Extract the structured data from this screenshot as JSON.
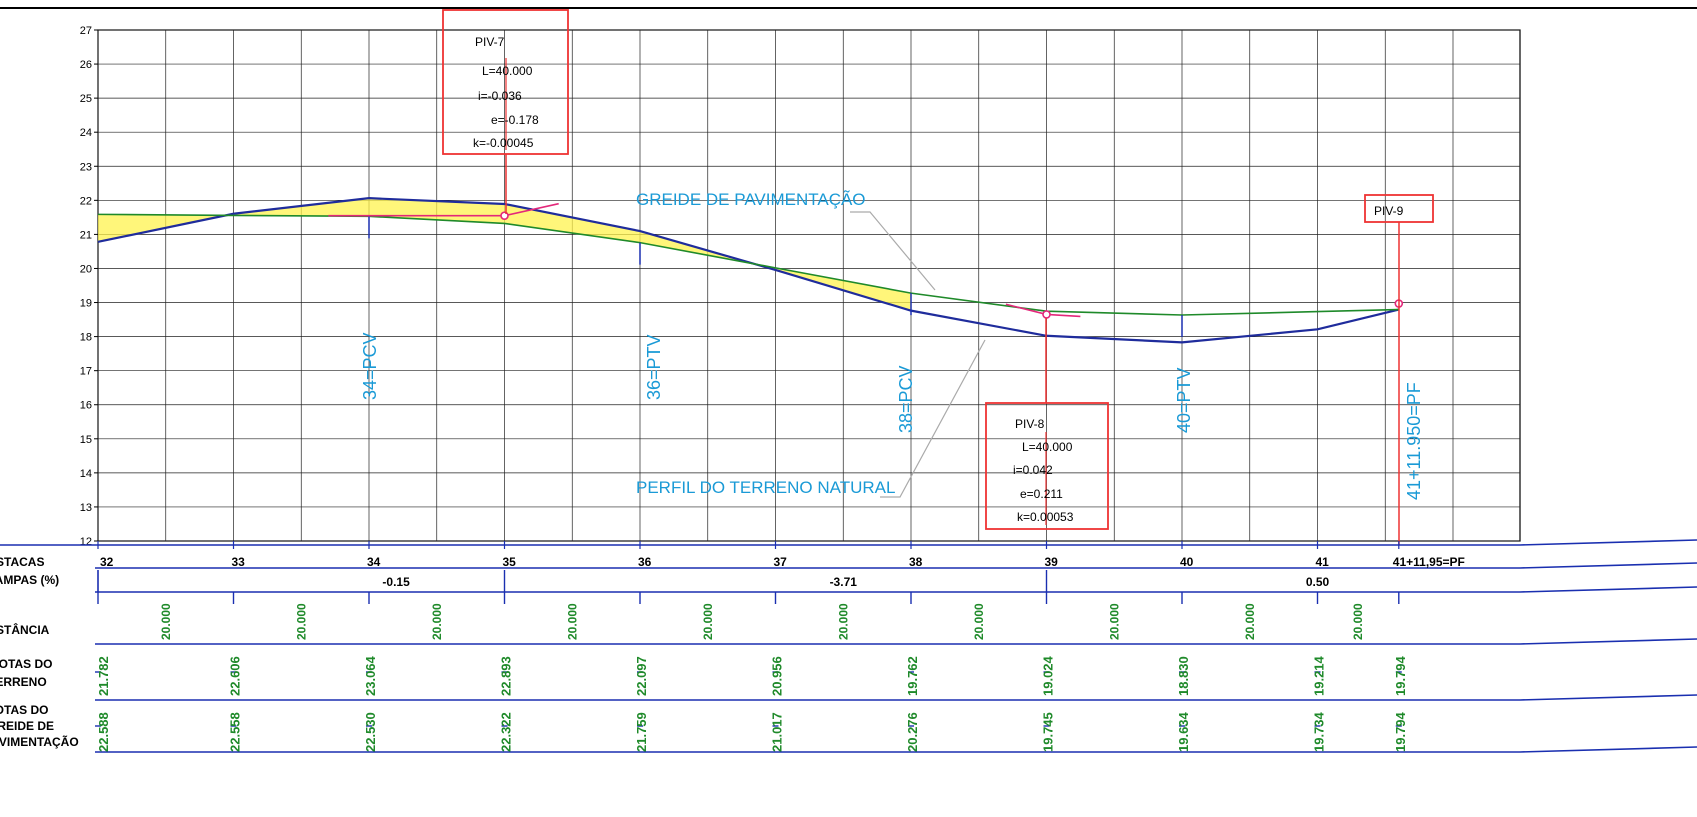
{
  "chart_data": {
    "type": "line",
    "x": [
      32,
      33,
      34,
      35,
      36,
      37,
      38,
      39,
      40,
      41,
      41.6
    ],
    "xlim": [
      32,
      42.7
    ],
    "ylim": [
      12,
      27
    ],
    "y_ticks": [
      "12",
      "13",
      "14",
      "15",
      "16",
      "17",
      "18",
      "19",
      "20",
      "21",
      "22",
      "23",
      "24",
      "25",
      "26",
      "27"
    ],
    "series": [
      {
        "name": "PERFIL DO TERRENO NATURAL",
        "color": "#1f2c9c",
        "values": [
          21.782,
          22.606,
          23.064,
          22.893,
          22.097,
          20.956,
          19.762,
          19.024,
          18.83,
          19.214,
          19.794
        ]
      },
      {
        "name": "GREIDE DE PAVIMENTAÇÃO",
        "color": "#1f8a2a",
        "values": [
          22.588,
          22.558,
          22.53,
          22.322,
          21.759,
          21.017,
          20.276,
          19.745,
          19.634,
          19.734,
          19.794
        ]
      }
    ],
    "grid": true
  },
  "labels": {
    "greide_label": "GREIDE DE PAVIMENTAÇÃO",
    "terreno_label": "PERFIL DO TERRENO NATURAL",
    "pcv34": "34=PCV",
    "ptv36": "36=PTV",
    "pcv38": "38=PCV",
    "ptv40": "40=PTV",
    "pf": "41+11.950=PF"
  },
  "piv": [
    {
      "title": "PIV-7",
      "L": "L=40.000",
      "i": "i=-0.036",
      "e": "e=-0.178",
      "k": "k=-0.00045",
      "x": 35,
      "elev": 21.55
    },
    {
      "title": "PIV-8",
      "L": "L=40.000",
      "i": "i=0.042",
      "e": "e=0.211",
      "k": "k=0.00053",
      "x": 39,
      "elev": 18.65
    },
    {
      "title": "PIV-9",
      "x": 41.6,
      "elev": 18.97
    }
  ],
  "table": {
    "headers": {
      "estacas": "ESTACAS",
      "rampas": "RAMPAS (%)",
      "distancia": "DISTÂNCIA",
      "cotas_terreno_1": "COTAS DO",
      "cotas_terreno_2": "TERRENO",
      "cotas_greide_1": "COTAS DO",
      "cotas_greide_2": "GREIDE DE",
      "cotas_greide_3": "PAVIMENTAÇÃO"
    },
    "stations": [
      "32",
      "33",
      "34",
      "35",
      "36",
      "37",
      "38",
      "39",
      "40",
      "41",
      "41+11,95=PF"
    ],
    "rampas": [
      "-0.15",
      "-3.71",
      "0.50"
    ],
    "rampas_x": [
      34.2,
      37.5,
      41.0
    ],
    "rampas_breaks": [
      35,
      39
    ],
    "distancias": [
      "20.000",
      "20.000",
      "20.000",
      "20.000",
      "20.000",
      "20.000",
      "20.000",
      "20.000",
      "20.000",
      "20.000"
    ],
    "cotas_terreno": [
      "21.782",
      "22.606",
      "23.064",
      "22.893",
      "22.097",
      "20.956",
      "19.762",
      "19.024",
      "18.830",
      "19.214",
      "19.794"
    ],
    "cotas_greide": [
      "22.588",
      "22.558",
      "22.530",
      "22.322",
      "21.759",
      "21.017",
      "20.276",
      "19.745",
      "19.634",
      "19.734",
      "19.794"
    ]
  }
}
